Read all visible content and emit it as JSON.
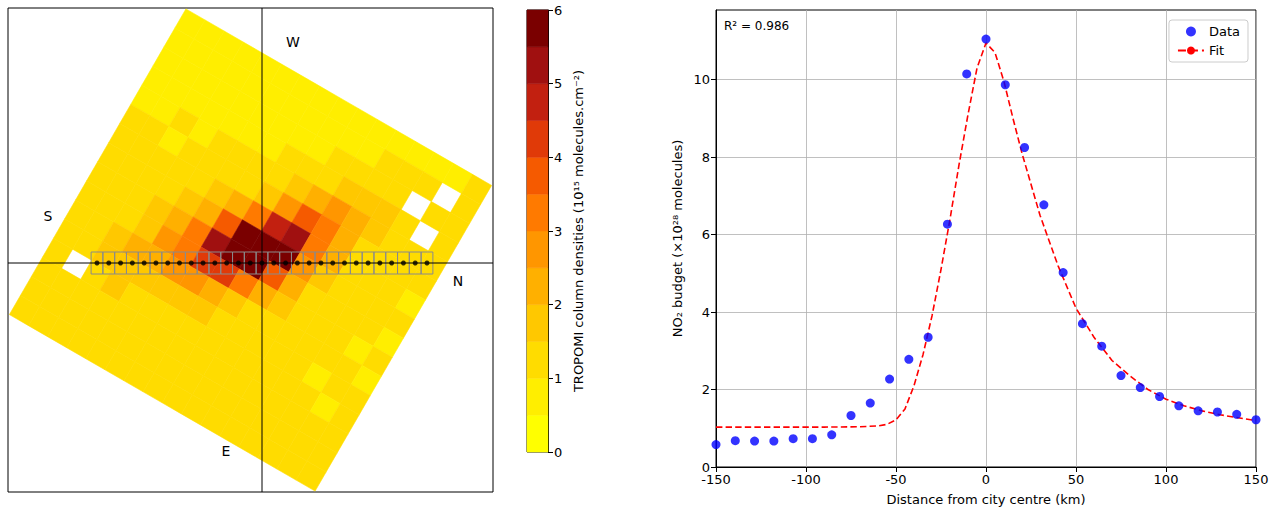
{
  "chart_data": [
    {
      "type": "heatmap",
      "directions": [
        "W",
        "E",
        "S",
        "N"
      ],
      "cells": [
        [
          0.6,
          0.5,
          0.6,
          0.5,
          0.7,
          0.6,
          0.5,
          0.6,
          0.7,
          0.6,
          0.8,
          0.7,
          0.9,
          0.8,
          0.9,
          1.0
        ],
        [
          0.7,
          0.6,
          0.6,
          0.7,
          0.6,
          0.7,
          0.6,
          0.7,
          0.8,
          0.7,
          0.9,
          1.0,
          1.1,
          1.0,
          null,
          1.1
        ],
        [
          0.8,
          0.7,
          0.7,
          0.8,
          0.7,
          0.8,
          0.7,
          0.8,
          0.9,
          1.0,
          1.1,
          1.2,
          1.4,
          null,
          1.2,
          1.1
        ],
        [
          0.9,
          0.8,
          0.8,
          0.9,
          0.9,
          0.8,
          0.9,
          1.0,
          1.1,
          1.3,
          1.6,
          1.8,
          1.5,
          1.3,
          null,
          1.0
        ],
        [
          0.9,
          0.9,
          1.0,
          0.9,
          1.0,
          1.0,
          1.1,
          1.3,
          1.6,
          2.2,
          2.6,
          2.0,
          1.5,
          1.2,
          1.1,
          1.0
        ],
        [
          1.0,
          1.0,
          0.9,
          1.0,
          1.1,
          1.2,
          1.4,
          1.9,
          2.8,
          3.6,
          3.0,
          2.1,
          1.4,
          1.2,
          1.0,
          1.0
        ],
        [
          1.0,
          1.1,
          1.0,
          1.1,
          1.2,
          1.5,
          2.1,
          3.2,
          4.8,
          5.2,
          3.4,
          2.0,
          1.3,
          1.1,
          1.0,
          0.9
        ],
        [
          1.1,
          1.0,
          1.1,
          1.2,
          1.6,
          2.3,
          3.5,
          6.3,
          6.8,
          5.5,
          2.8,
          1.6,
          1.2,
          1.1,
          1.0,
          1.0
        ],
        [
          1.0,
          1.1,
          1.2,
          1.5,
          2.2,
          3.1,
          5.4,
          6.9,
          6.6,
          3.9,
          2.0,
          1.4,
          1.1,
          1.0,
          1.0,
          0.9
        ],
        [
          1.1,
          1.2,
          1.4,
          1.9,
          2.6,
          3.3,
          4.1,
          4.4,
          3.2,
          2.1,
          1.5,
          1.2,
          1.1,
          1.0,
          0.9,
          1.0
        ],
        [
          1.2,
          1.3,
          1.6,
          2.0,
          2.4,
          2.6,
          2.5,
          2.2,
          1.8,
          1.4,
          1.2,
          1.1,
          1.0,
          1.0,
          1.0,
          0.9
        ],
        [
          1.3,
          1.4,
          1.6,
          1.8,
          1.9,
          1.8,
          1.7,
          1.5,
          1.3,
          1.2,
          1.1,
          1.0,
          1.0,
          0.9,
          1.0,
          1.0
        ],
        [
          1.2,
          null,
          1.4,
          1.5,
          1.4,
          1.4,
          1.3,
          1.2,
          1.2,
          1.1,
          1.0,
          1.1,
          1.0,
          1.0,
          0.9,
          1.0
        ],
        [
          1.1,
          1.2,
          1.3,
          1.2,
          1.3,
          1.2,
          1.2,
          1.1,
          1.1,
          1.0,
          1.1,
          1.0,
          1.0,
          1.1,
          1.0,
          1.0
        ],
        [
          1.0,
          1.1,
          1.2,
          1.1,
          1.2,
          1.1,
          1.1,
          1.2,
          1.0,
          1.1,
          1.0,
          1.0,
          1.1,
          1.0,
          1.0,
          1.1
        ],
        [
          1.0,
          1.0,
          1.1,
          1.2,
          1.1,
          1.0,
          1.2,
          1.1,
          1.0,
          1.0,
          1.1,
          1.0,
          1.0,
          1.0,
          1.1,
          1.0
        ]
      ],
      "colorbar": {
        "label": "TROPOMI column densities (10¹⁵ molecules.cm⁻²)",
        "range": [
          0,
          6
        ],
        "ticks": [
          0,
          1,
          2,
          3,
          4,
          5,
          6
        ],
        "levels": [
          0,
          0.5,
          1,
          1.5,
          2,
          2.5,
          3,
          3.5,
          4,
          4.5,
          5,
          5.5,
          6
        ],
        "colors": [
          "#ffff00",
          "#ffee00",
          "#ffdc00",
          "#ffc800",
          "#ffb000",
          "#ff9600",
          "#ff7a00",
          "#f55a00",
          "#e03a08",
          "#c22010",
          "#a01010",
          "#7a0000"
        ]
      }
    },
    {
      "type": "scatter",
      "x_label": "Distance from city centre (km)",
      "y_label": "NO₂ budget (×10²⁸ molecules)",
      "annotation": "R² = 0.986",
      "xlim": [
        -150,
        150
      ],
      "xticks": [
        -150,
        -100,
        -50,
        0,
        50,
        100,
        150
      ],
      "ylim": [
        0,
        11.8
      ],
      "yticks": [
        0,
        2,
        4,
        6,
        8,
        10
      ],
      "grid": true,
      "legend": "upper right",
      "series": [
        {
          "name": "Data",
          "type": "scatter",
          "color": "#0000ff",
          "marker": "circle",
          "x": [
            -150,
            -139.29,
            -128.57,
            -117.86,
            -107.14,
            -96.43,
            -85.71,
            -75,
            -64.29,
            -53.57,
            -42.86,
            -32.14,
            -21.43,
            -10.71,
            0,
            10.71,
            21.43,
            32.14,
            42.86,
            53.57,
            64.29,
            75,
            85.71,
            96.43,
            107.14,
            117.86,
            128.57,
            139.29,
            150
          ],
          "values": [
            0.58,
            0.68,
            0.67,
            0.67,
            0.73,
            0.73,
            0.83,
            1.33,
            1.65,
            2.27,
            2.78,
            3.35,
            6.27,
            10.15,
            11.05,
            9.87,
            8.25,
            6.77,
            5.02,
            3.7,
            3.12,
            2.36,
            2.05,
            1.82,
            1.58,
            1.45,
            1.42,
            1.36,
            1.22
          ]
        },
        {
          "name": "Fit",
          "type": "line",
          "color": "#ff0000",
          "line_style": "dashed",
          "x": [
            -150,
            -120,
            -90,
            -70,
            -60,
            -55,
            -50,
            -45,
            -40,
            -35,
            -30,
            -25,
            -20,
            -15,
            -10,
            -5,
            0,
            5,
            10,
            15,
            20,
            25,
            30,
            35,
            40,
            50,
            60,
            70,
            80,
            90,
            100,
            110,
            120,
            130,
            140,
            150
          ],
          "values": [
            1.03,
            1.03,
            1.03,
            1.04,
            1.06,
            1.1,
            1.22,
            1.5,
            2.1,
            2.9,
            3.9,
            5.1,
            6.4,
            7.8,
            9.1,
            10.3,
            10.95,
            10.7,
            9.95,
            9.0,
            8.1,
            7.3,
            6.5,
            5.85,
            5.2,
            4.1,
            3.35,
            2.75,
            2.35,
            2.0,
            1.75,
            1.58,
            1.45,
            1.35,
            1.27,
            1.2
          ]
        }
      ]
    }
  ]
}
